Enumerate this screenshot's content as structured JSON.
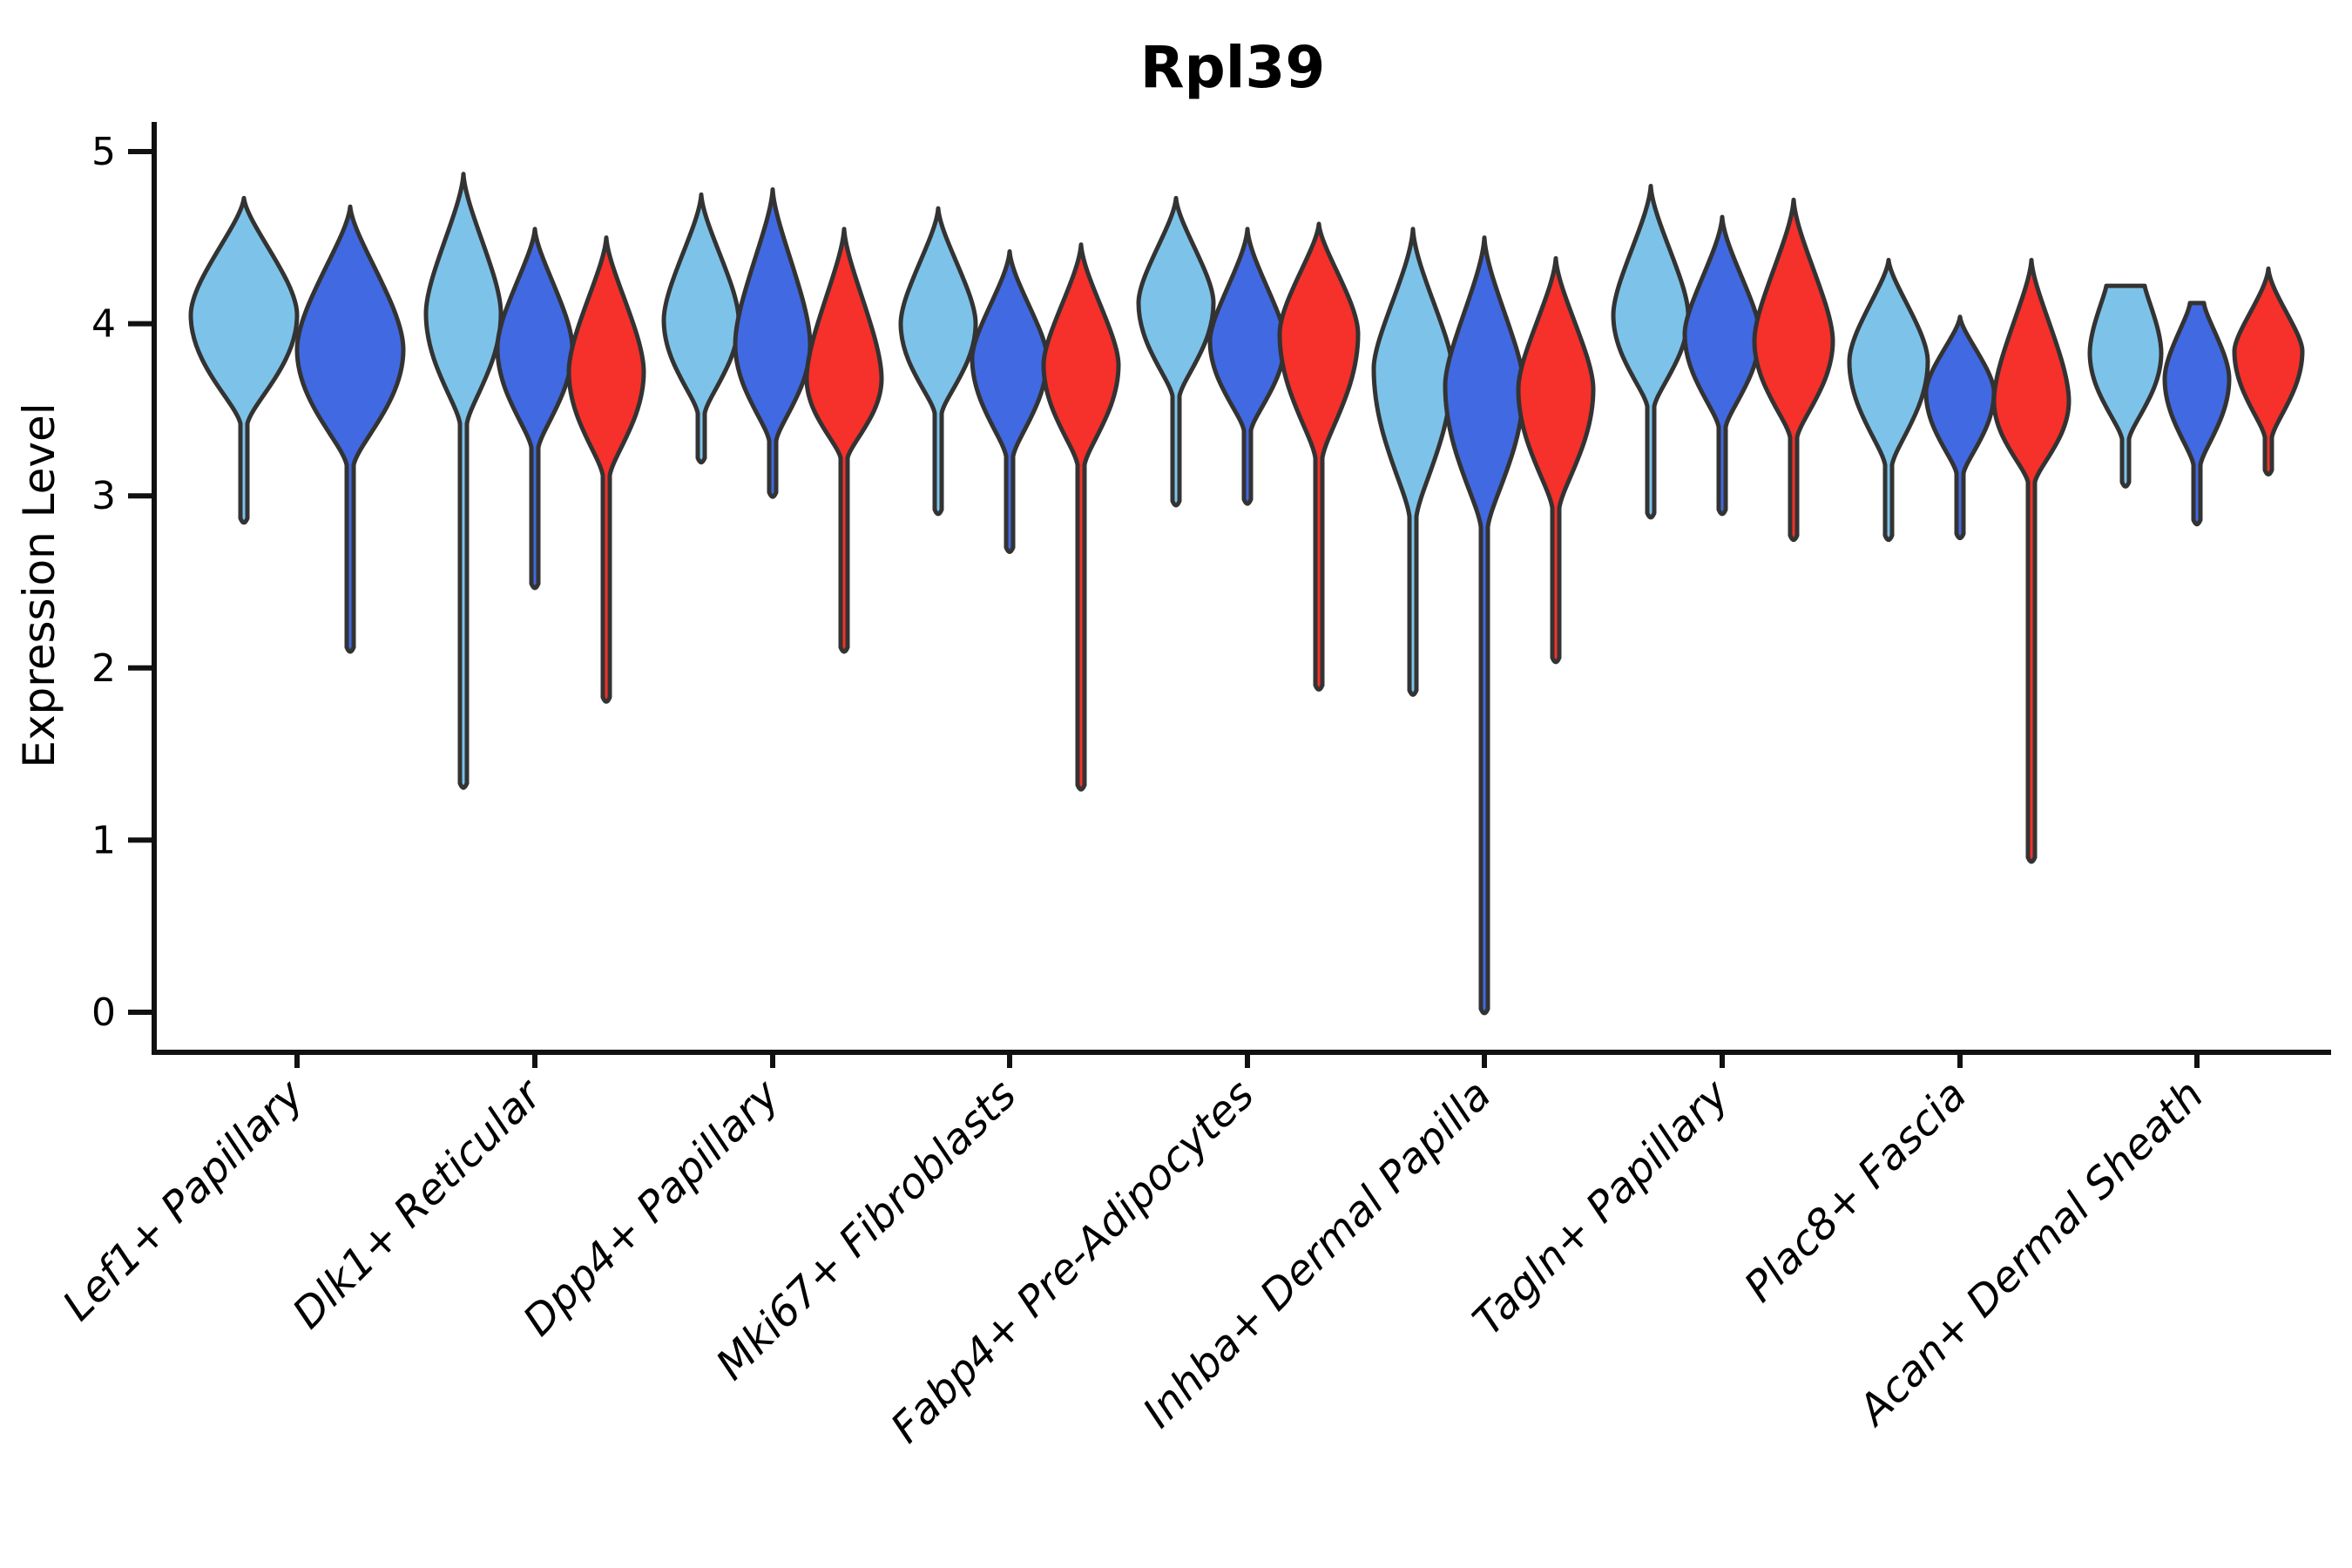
{
  "chart_data": {
    "type": "violin",
    "title": "Rpl39",
    "xlabel": "",
    "ylabel": "Expression Level",
    "yticks": [
      0,
      1,
      2,
      3,
      4,
      5
    ],
    "ylim": [
      -0.23,
      5.17
    ],
    "grid": false,
    "legend": "none",
    "palette": {
      "lightblue": "#7DC3E9",
      "darkblue": "#4169E1",
      "red": "#F6302A"
    },
    "outline_color": "#333333",
    "axis_color": "#111111",
    "categories": [
      "Lef1+ Papillary",
      "Dlk1+ Reticular",
      "Dpp4+ Papillary",
      "Mki67+ Fibroblasts",
      "Fabp4+ Pre-Adipocytes",
      "Inhba+ Dermal Papilla",
      "Tagln+ Papillary",
      "Plac8+ Fascia",
      "Acan+ Dermal Sheath"
    ],
    "value_note": "violin profiles in expression-level units: top=upper tail tip, neck=start of bulge, peak=widest point, waist=bottom of bulge, tail=lower tail end",
    "groups": [
      {
        "label": "Lef1+ Papillary",
        "center_x": 341,
        "violins": [
          {
            "color": "lightblue",
            "cx": 280,
            "top": 4.73,
            "neck": 4.42,
            "peak": 4.05,
            "waist": 3.42,
            "tail": 2.87,
            "w": 61,
            "flat": 0
          },
          {
            "color": "darkblue",
            "cx": 402,
            "top": 4.68,
            "neck": 4.3,
            "peak": 3.85,
            "waist": 3.18,
            "tail": 2.12,
            "w": 61,
            "flat": 0
          }
        ]
      },
      {
        "label": "Dlk1+ Reticular",
        "center_x": 614,
        "violins": [
          {
            "color": "lightblue",
            "cx": 532,
            "top": 4.87,
            "neck": 4.45,
            "peak": 4.06,
            "waist": 3.42,
            "tail": 1.33,
            "w": 43,
            "flat": 0
          },
          {
            "color": "darkblue",
            "cx": 614,
            "top": 4.55,
            "neck": 4.22,
            "peak": 3.86,
            "waist": 3.28,
            "tail": 2.49,
            "w": 43,
            "flat": 0
          },
          {
            "color": "red",
            "cx": 696,
            "top": 4.5,
            "neck": 4.12,
            "peak": 3.72,
            "waist": 3.12,
            "tail": 1.83,
            "w": 43,
            "flat": 0
          }
        ]
      },
      {
        "label": "Dpp4+ Papillary",
        "center_x": 887,
        "violins": [
          {
            "color": "lightblue",
            "cx": 805,
            "top": 4.75,
            "neck": 4.38,
            "peak": 4.02,
            "waist": 3.48,
            "tail": 3.22,
            "w": 43,
            "flat": 0
          },
          {
            "color": "darkblue",
            "cx": 887,
            "top": 4.78,
            "neck": 4.34,
            "peak": 3.88,
            "waist": 3.32,
            "tail": 3.02,
            "w": 43,
            "flat": 0
          },
          {
            "color": "red",
            "cx": 969,
            "top": 4.55,
            "neck": 4.12,
            "peak": 3.68,
            "waist": 3.22,
            "tail": 2.12,
            "w": 43,
            "flat": 0
          }
        ]
      },
      {
        "label": "Mki67+ Fibroblasts",
        "center_x": 1159,
        "violins": [
          {
            "color": "lightblue",
            "cx": 1077,
            "top": 4.67,
            "neck": 4.33,
            "peak": 4.0,
            "waist": 3.48,
            "tail": 2.92,
            "w": 43,
            "flat": 0
          },
          {
            "color": "darkblue",
            "cx": 1159,
            "top": 4.42,
            "neck": 4.08,
            "peak": 3.8,
            "waist": 3.23,
            "tail": 2.7,
            "w": 43,
            "flat": 0
          },
          {
            "color": "red",
            "cx": 1241,
            "top": 4.46,
            "neck": 4.08,
            "peak": 3.76,
            "waist": 3.18,
            "tail": 1.32,
            "w": 43,
            "flat": 0
          }
        ]
      },
      {
        "label": "Fabp4+ Pre-Adipocytes",
        "center_x": 1432,
        "violins": [
          {
            "color": "lightblue",
            "cx": 1350,
            "top": 4.73,
            "neck": 4.42,
            "peak": 4.12,
            "waist": 3.58,
            "tail": 2.97,
            "w": 43,
            "flat": 0
          },
          {
            "color": "darkblue",
            "cx": 1432,
            "top": 4.55,
            "neck": 4.18,
            "peak": 3.9,
            "waist": 3.38,
            "tail": 2.98,
            "w": 43,
            "flat": 0
          },
          {
            "color": "red",
            "cx": 1514,
            "top": 4.58,
            "neck": 4.28,
            "peak": 3.94,
            "waist": 3.22,
            "tail": 1.9,
            "w": 45,
            "flat": 0
          }
        ]
      },
      {
        "label": "Inhba+ Dermal Papilla",
        "center_x": 1704,
        "violins": [
          {
            "color": "lightblue",
            "cx": 1622,
            "top": 4.55,
            "neck": 4.08,
            "peak": 3.74,
            "waist": 2.88,
            "tail": 1.87,
            "w": 45,
            "flat": 0
          },
          {
            "color": "darkblue",
            "cx": 1704,
            "top": 4.5,
            "neck": 4.02,
            "peak": 3.64,
            "waist": 2.82,
            "tail": 0.02,
            "w": 45,
            "flat": 0
          },
          {
            "color": "red",
            "cx": 1786,
            "top": 4.38,
            "neck": 3.98,
            "peak": 3.62,
            "waist": 2.93,
            "tail": 2.06,
            "w": 43,
            "flat": 0
          }
        ]
      },
      {
        "label": "Tagln+ Papillary",
        "center_x": 1977,
        "violins": [
          {
            "color": "lightblue",
            "cx": 1895,
            "top": 4.8,
            "neck": 4.4,
            "peak": 4.05,
            "waist": 3.52,
            "tail": 2.9,
            "w": 43,
            "flat": 0
          },
          {
            "color": "darkblue",
            "cx": 1977,
            "top": 4.62,
            "neck": 4.24,
            "peak": 3.94,
            "waist": 3.4,
            "tail": 2.92,
            "w": 43,
            "flat": 0
          },
          {
            "color": "red",
            "cx": 2059,
            "top": 4.72,
            "neck": 4.28,
            "peak": 3.9,
            "waist": 3.34,
            "tail": 2.77,
            "w": 45,
            "flat": 0
          }
        ]
      },
      {
        "label": "Plac8+ Fascia",
        "center_x": 2250,
        "violins": [
          {
            "color": "lightblue",
            "cx": 2168,
            "top": 4.37,
            "neck": 4.1,
            "peak": 3.78,
            "waist": 3.18,
            "tail": 2.77,
            "w": 45,
            "flat": 0
          },
          {
            "color": "darkblue",
            "cx": 2250,
            "top": 4.04,
            "neck": 3.84,
            "peak": 3.6,
            "waist": 3.13,
            "tail": 2.78,
            "w": 39,
            "flat": 0
          },
          {
            "color": "red",
            "cx": 2332,
            "top": 4.37,
            "neck": 3.98,
            "peak": 3.55,
            "waist": 3.08,
            "tail": 0.9,
            "w": 43,
            "flat": 0
          }
        ]
      },
      {
        "label": "Acan+ Dermal Sheath",
        "center_x": 2522,
        "violins": [
          {
            "color": "lightblue",
            "cx": 2440,
            "top": 4.22,
            "neck": 4.08,
            "peak": 3.83,
            "waist": 3.33,
            "tail": 3.08,
            "w": 41,
            "flat": 22
          },
          {
            "color": "darkblue",
            "cx": 2522,
            "top": 4.12,
            "neck": 3.94,
            "peak": 3.68,
            "waist": 3.18,
            "tail": 2.86,
            "w": 37,
            "flat": 8
          },
          {
            "color": "red",
            "cx": 2604,
            "top": 4.32,
            "neck": 4.04,
            "peak": 3.84,
            "waist": 3.34,
            "tail": 3.15,
            "w": 39,
            "flat": 0
          }
        ]
      }
    ]
  }
}
